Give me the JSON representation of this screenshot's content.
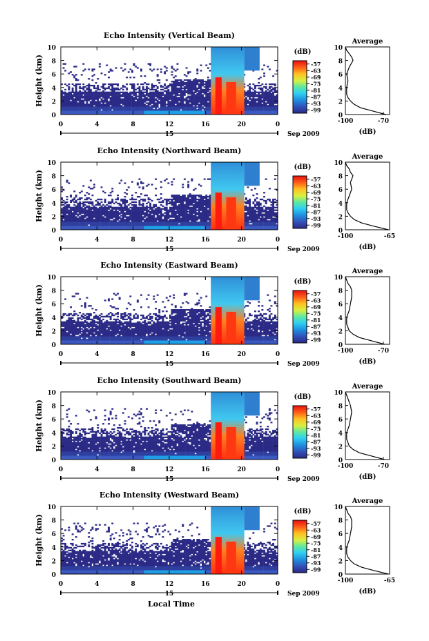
{
  "figure": {
    "xlabel": "Local Time",
    "units_label": "(dB)",
    "date_label": "Sep 2009",
    "day_label": "15",
    "avg_title": "Average",
    "avg_xlabel": "(dB)"
  },
  "chart_data": [
    {
      "type": "heatmap",
      "title": "Echo Intensity (Vertical Beam)",
      "ylabel": "Height (km)",
      "xticks": [
        "0",
        "4",
        "8",
        "12",
        "16",
        "20",
        "0"
      ],
      "yticks": [
        "0",
        "2",
        "4",
        "6",
        "8",
        "10"
      ],
      "xlim": [
        0,
        24
      ],
      "ylim": [
        0,
        10
      ],
      "colorbar_ticks": [
        "-57",
        "-63",
        "-69",
        "-75",
        "-81",
        "-87",
        "-93",
        "-99"
      ],
      "colorbar_range": [
        -102,
        -54
      ],
      "colors": {
        "low": "#2b2a86",
        "mid": "#1fb3f0",
        "high": "#ee1010"
      },
      "average_profile": {
        "title": "Average",
        "xticks": [
          "-100",
          "-70"
        ],
        "xlim": [
          -100,
          -65
        ],
        "yticks": [
          "0",
          "2",
          "4",
          "6",
          "8",
          "10"
        ],
        "height_km": [
          0,
          0.5,
          1,
          1.5,
          2,
          2.5,
          3,
          4,
          5,
          6,
          7,
          8,
          8.5,
          9,
          9.5,
          10
        ],
        "intensity_db": [
          -68,
          -78,
          -88,
          -93,
          -96,
          -98,
          -99,
          -99,
          -98,
          -99,
          -97,
          -94,
          -95,
          -97,
          -99,
          -100
        ]
      }
    },
    {
      "type": "heatmap",
      "title": "Echo Intensity (Northward Beam)",
      "ylabel": "Height (km)",
      "xticks": [
        "0",
        "4",
        "8",
        "12",
        "16",
        "20",
        "0"
      ],
      "yticks": [
        "0",
        "2",
        "4",
        "6",
        "8",
        "10"
      ],
      "xlim": [
        0,
        24
      ],
      "ylim": [
        0,
        10
      ],
      "colorbar_ticks": [
        "-57",
        "-63",
        "-69",
        "-75",
        "-81",
        "-87",
        "-93",
        "-99"
      ],
      "colorbar_range": [
        -102,
        -54
      ],
      "colors": {
        "low": "#2b2a86",
        "mid": "#1fb3f0",
        "high": "#ee1010"
      },
      "average_profile": {
        "title": "Average",
        "xticks": [
          "-100",
          "-65"
        ],
        "xlim": [
          -100,
          -65
        ],
        "yticks": [
          "0",
          "2",
          "4",
          "6",
          "8",
          "10"
        ],
        "height_km": [
          0,
          0.5,
          1,
          1.5,
          2,
          2.5,
          3,
          4,
          5,
          6,
          7,
          8,
          8.5,
          9,
          9.5,
          10
        ],
        "intensity_db": [
          -66,
          -77,
          -87,
          -93,
          -96,
          -98,
          -99,
          -99,
          -97,
          -95,
          -96,
          -94,
          -96,
          -97,
          -99,
          -100
        ]
      }
    },
    {
      "type": "heatmap",
      "title": "Echo Intensity (Eastward Beam)",
      "ylabel": "Height (km)",
      "xticks": [
        "0",
        "4",
        "8",
        "12",
        "16",
        "20",
        "0"
      ],
      "yticks": [
        "0",
        "2",
        "4",
        "6",
        "8",
        "10"
      ],
      "xlim": [
        0,
        24
      ],
      "ylim": [
        0,
        10
      ],
      "colorbar_ticks": [
        "-57",
        "-63",
        "-69",
        "-75",
        "-81",
        "-87",
        "-93",
        "-99"
      ],
      "colorbar_range": [
        -102,
        -54
      ],
      "colors": {
        "low": "#2b2a86",
        "mid": "#1fb3f0",
        "high": "#ee1010"
      },
      "average_profile": {
        "title": "Average",
        "xticks": [
          "-100",
          "-70"
        ],
        "xlim": [
          -100,
          -65
        ],
        "yticks": [
          "0",
          "2",
          "4",
          "6",
          "8",
          "10"
        ],
        "height_km": [
          0,
          0.5,
          1,
          1.5,
          2,
          2.5,
          3,
          4,
          5,
          6,
          7,
          8,
          8.5,
          9,
          9.5,
          10
        ],
        "intensity_db": [
          -69,
          -79,
          -89,
          -94,
          -97,
          -98,
          -99,
          -99,
          -97,
          -96,
          -95,
          -95,
          -96,
          -98,
          -99,
          -100
        ]
      }
    },
    {
      "type": "heatmap",
      "title": "Echo Intensity (Southward Beam)",
      "ylabel": "Height (km)",
      "xticks": [
        "0",
        "4",
        "8",
        "12",
        "16",
        "20",
        "0"
      ],
      "yticks": [
        "0",
        "2",
        "4",
        "6",
        "8",
        "10"
      ],
      "xlim": [
        0,
        24
      ],
      "ylim": [
        0,
        10
      ],
      "colorbar_ticks": [
        "-57",
        "-63",
        "-69",
        "-75",
        "-81",
        "-87",
        "-93",
        "-99"
      ],
      "colorbar_range": [
        -102,
        -54
      ],
      "colors": {
        "low": "#2b2a86",
        "mid": "#1fb3f0",
        "high": "#ee1010"
      },
      "average_profile": {
        "title": "Average",
        "xticks": [
          "-100",
          "-70"
        ],
        "xlim": [
          -100,
          -65
        ],
        "yticks": [
          "0",
          "2",
          "4",
          "6",
          "8",
          "10"
        ],
        "height_km": [
          0,
          0.5,
          1,
          1.5,
          2,
          2.5,
          3,
          4,
          5,
          6,
          7,
          8,
          8.5,
          9,
          9.5,
          10
        ],
        "intensity_db": [
          -69,
          -79,
          -89,
          -94,
          -97,
          -98,
          -99,
          -99,
          -97,
          -96,
          -95,
          -96,
          -97,
          -98,
          -99,
          -100
        ]
      }
    },
    {
      "type": "heatmap",
      "title": "Echo Intensity (Westward Beam)",
      "ylabel": "Height (km)",
      "xticks": [
        "0",
        "4",
        "8",
        "12",
        "16",
        "20",
        "0"
      ],
      "yticks": [
        "0",
        "2",
        "4",
        "6",
        "8",
        "10"
      ],
      "xlim": [
        0,
        24
      ],
      "ylim": [
        0,
        10
      ],
      "colorbar_ticks": [
        "-57",
        "-63",
        "-69",
        "-75",
        "-81",
        "-87",
        "-93",
        "-99"
      ],
      "colorbar_range": [
        -102,
        -54
      ],
      "colors": {
        "low": "#2b2a86",
        "mid": "#1fb3f0",
        "high": "#ee1010"
      },
      "average_profile": {
        "title": "Average",
        "xticks": [
          "-100",
          "-65"
        ],
        "xlim": [
          -100,
          -65
        ],
        "yticks": [
          "0",
          "2",
          "4",
          "6",
          "8",
          "10"
        ],
        "height_km": [
          0,
          0.5,
          1,
          1.5,
          2,
          2.5,
          3,
          4,
          5,
          6,
          7,
          8,
          8.5,
          9,
          9.5,
          10
        ],
        "intensity_db": [
          -66,
          -77,
          -87,
          -93,
          -96,
          -98,
          -99,
          -99,
          -97,
          -96,
          -95,
          -95,
          -96,
          -98,
          -99,
          -100
        ]
      }
    }
  ]
}
